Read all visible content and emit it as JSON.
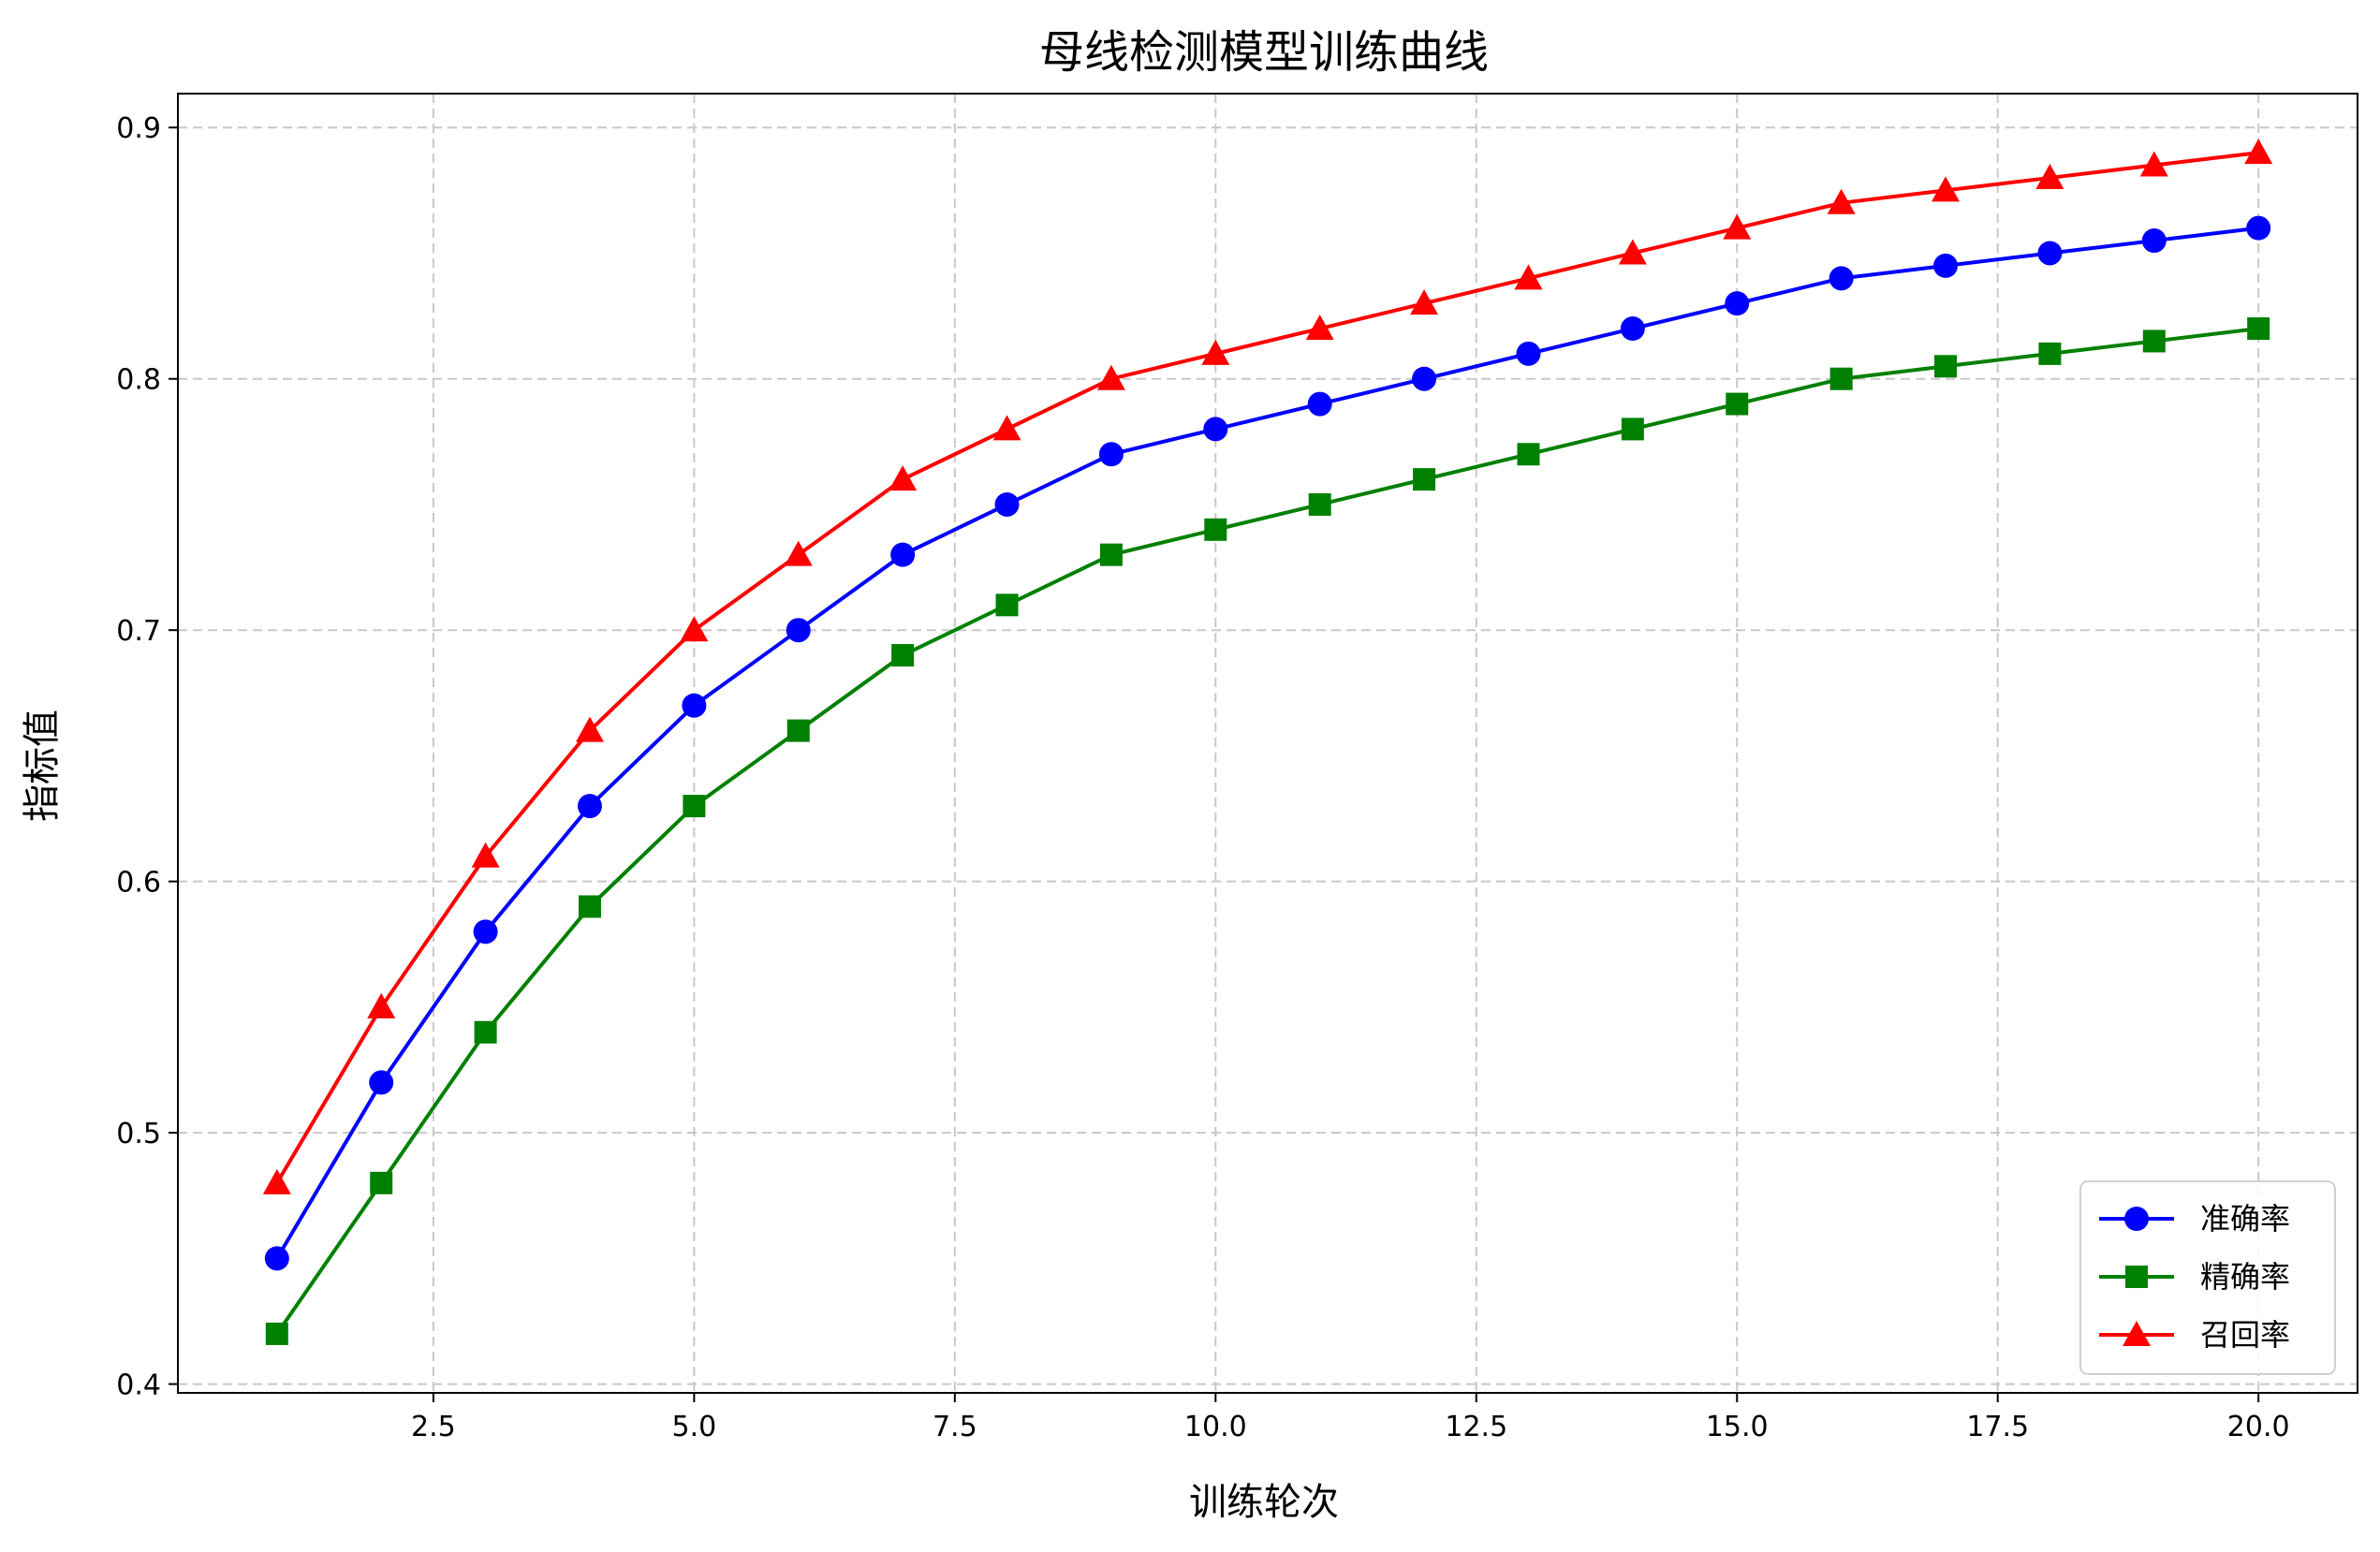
{
  "chart_data": {
    "type": "line",
    "title": "母线检测模型训练曲线",
    "xlabel": "训练轮次",
    "ylabel": "指标值",
    "x": [
      1,
      2,
      3,
      4,
      5,
      6,
      7,
      8,
      9,
      10,
      11,
      12,
      13,
      14,
      15,
      16,
      17,
      18,
      19,
      20
    ],
    "xlim": [
      0.05,
      20.95
    ],
    "ylim": [
      0.3965,
      0.9135
    ],
    "xticks": [
      2.5,
      5.0,
      7.5,
      10.0,
      12.5,
      15.0,
      17.5,
      20.0
    ],
    "xtick_labels": [
      "2.5",
      "5.0",
      "7.5",
      "10.0",
      "12.5",
      "15.0",
      "17.5",
      "20.0"
    ],
    "yticks": [
      0.4,
      0.5,
      0.6,
      0.7,
      0.8,
      0.9
    ],
    "ytick_labels": [
      "0.4",
      "0.5",
      "0.6",
      "0.7",
      "0.8",
      "0.9"
    ],
    "grid": true,
    "legend_position": "bottom-right",
    "series": [
      {
        "name": "准确率",
        "color": "#0000ff",
        "marker": "circle",
        "values": [
          0.45,
          0.52,
          0.58,
          0.63,
          0.67,
          0.7,
          0.73,
          0.75,
          0.77,
          0.78,
          0.79,
          0.8,
          0.81,
          0.82,
          0.83,
          0.84,
          0.845,
          0.85,
          0.855,
          0.86
        ]
      },
      {
        "name": "精确率",
        "color": "#008000",
        "marker": "square",
        "values": [
          0.42,
          0.48,
          0.54,
          0.59,
          0.63,
          0.66,
          0.69,
          0.71,
          0.73,
          0.74,
          0.75,
          0.76,
          0.77,
          0.78,
          0.79,
          0.8,
          0.805,
          0.81,
          0.815,
          0.82
        ]
      },
      {
        "name": "召回率",
        "color": "#ff0000",
        "marker": "triangle",
        "values": [
          0.48,
          0.55,
          0.61,
          0.66,
          0.7,
          0.73,
          0.76,
          0.78,
          0.8,
          0.81,
          0.82,
          0.83,
          0.84,
          0.85,
          0.86,
          0.87,
          0.875,
          0.88,
          0.885,
          0.89
        ]
      }
    ]
  }
}
